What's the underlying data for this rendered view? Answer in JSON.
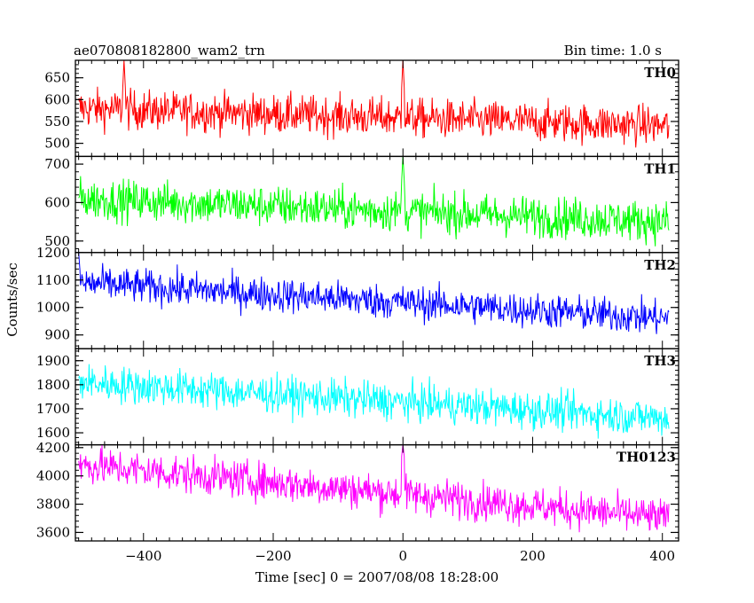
{
  "header": {
    "title": "ae070808182800_wam2_trn",
    "bin_time": "Bin time: 1.0 s"
  },
  "axes": {
    "ylabel": "Counts/sec",
    "xlabel": "Time [sec] 0 = 2007/08/08 18:28:00"
  },
  "chart_data": {
    "type": "line",
    "title": "ae070808182800_wam2_trn",
    "xlabel": "Time [sec] 0 = 2007/08/08 18:28:00",
    "ylabel": "Counts/sec",
    "xlim": [
      -505,
      425
    ],
    "x_ticks": [
      -400,
      -200,
      0,
      200,
      400
    ],
    "x_tick_labels": [
      "−400",
      "−200",
      "0",
      "200",
      "400"
    ],
    "x_range_data": [
      -500,
      410
    ],
    "bin_time_s": 1.0,
    "panels": [
      {
        "name": "TH0",
        "color": "#ff0000",
        "ylim": [
          470,
          690
        ],
        "y_ticks": [
          500,
          550,
          600,
          650
        ],
        "y_tick_labels": [
          "500",
          "550",
          "600",
          "650"
        ],
        "trend_start": 580,
        "trend_end": 540,
        "noise": 32,
        "spikes": [
          {
            "t": -430,
            "v": 690
          },
          {
            "t": 0,
            "v": 690
          }
        ]
      },
      {
        "name": "TH1",
        "color": "#00ff00",
        "ylim": [
          470,
          720
        ],
        "y_ticks": [
          500,
          600,
          700
        ],
        "y_tick_labels": [
          "500",
          "600",
          "700"
        ],
        "trend_start": 610,
        "trend_end": 550,
        "noise": 38,
        "spikes": [
          {
            "t": 0,
            "v": 720
          }
        ]
      },
      {
        "name": "TH2",
        "color": "#0000ff",
        "ylim": [
          850,
          1200
        ],
        "y_ticks": [
          900,
          1000,
          1100,
          1200
        ],
        "y_tick_labels": [
          "900",
          "1000",
          "1100",
          "1200"
        ],
        "trend_start": 1090,
        "trend_end": 960,
        "noise": 45,
        "spikes": [
          {
            "t": -500,
            "v": 1200
          }
        ]
      },
      {
        "name": "TH3",
        "color": "#00ffff",
        "ylim": [
          1550,
          1950
        ],
        "y_ticks": [
          1600,
          1700,
          1800,
          1900
        ],
        "y_tick_labels": [
          "1600",
          "1700",
          "1800",
          "1900"
        ],
        "trend_start": 1810,
        "trend_end": 1660,
        "noise": 55,
        "spikes": []
      },
      {
        "name": "TH0123",
        "color": "#ff00ff",
        "ylim": [
          3540,
          4220
        ],
        "y_ticks": [
          3600,
          3800,
          4000,
          4200
        ],
        "y_tick_labels": [
          "3600",
          "3800",
          "4000",
          "4200"
        ],
        "trend_start": 4080,
        "trend_end": 3700,
        "noise": 95,
        "spikes": [
          {
            "t": 0,
            "v": 4220
          }
        ]
      }
    ]
  }
}
